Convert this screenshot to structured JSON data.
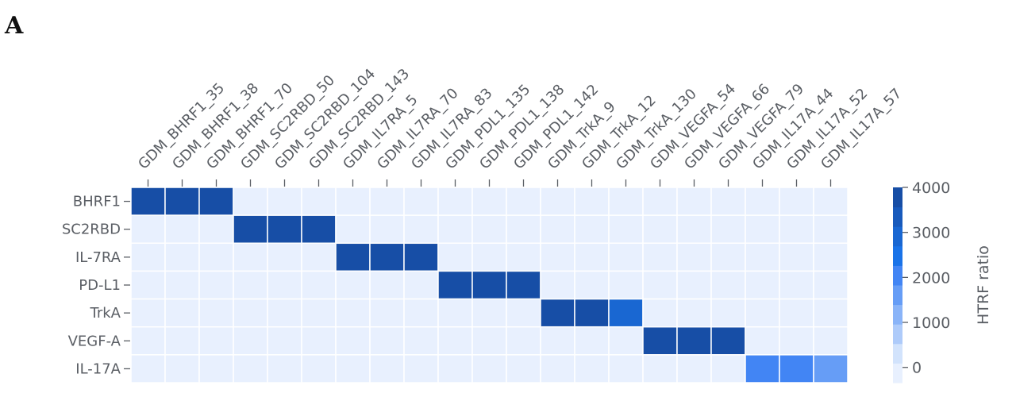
{
  "panel_label": "A",
  "chart_data": {
    "type": "heatmap",
    "x_categories": [
      "GDM_BHRF1_35",
      "GDM_BHRF1_38",
      "GDM_BHRF1_70",
      "GDM_SC2RBD_50",
      "GDM_SC2RBD_104",
      "GDM_SC2RBD_143",
      "GDM_IL7RA_5",
      "GDM_IL7RA_70",
      "GDM_IL7RA_83",
      "GDM_PDL1_135",
      "GDM_PDL1_138",
      "GDM_PDL1_142",
      "GDM_TrkA_9",
      "GDM_TrkA_12",
      "GDM_TrkA_130",
      "GDM_VEGFA_54",
      "GDM_VEGFA_66",
      "GDM_VEGFA_79",
      "GDM_IL17A_44",
      "GDM_IL17A_52",
      "GDM_IL17A_57"
    ],
    "y_categories": [
      "BHRF1",
      "SC2RBD",
      "IL-7RA",
      "PD-L1",
      "TrkA",
      "VEGF-A",
      "IL-17A"
    ],
    "values": [
      [
        3900,
        3900,
        3900,
        0,
        0,
        0,
        0,
        0,
        0,
        0,
        0,
        0,
        0,
        0,
        0,
        0,
        0,
        0,
        0,
        0,
        0
      ],
      [
        0,
        0,
        0,
        3900,
        3900,
        3900,
        0,
        0,
        0,
        0,
        0,
        0,
        0,
        0,
        0,
        0,
        0,
        0,
        0,
        0,
        0
      ],
      [
        0,
        0,
        0,
        0,
        0,
        0,
        3900,
        3900,
        3900,
        0,
        0,
        0,
        0,
        0,
        0,
        0,
        0,
        0,
        0,
        0,
        0
      ],
      [
        0,
        0,
        0,
        0,
        0,
        0,
        0,
        0,
        0,
        3900,
        3900,
        3900,
        0,
        0,
        0,
        0,
        0,
        0,
        0,
        0,
        0
      ],
      [
        0,
        0,
        0,
        0,
        0,
        0,
        0,
        0,
        0,
        0,
        0,
        0,
        3900,
        3900,
        2900,
        0,
        0,
        0,
        0,
        0,
        0
      ],
      [
        0,
        0,
        0,
        0,
        0,
        0,
        0,
        0,
        0,
        0,
        0,
        0,
        0,
        0,
        0,
        3900,
        3900,
        3900,
        0,
        0,
        0
      ],
      [
        0,
        0,
        0,
        0,
        0,
        0,
        0,
        0,
        0,
        0,
        0,
        0,
        0,
        0,
        0,
        0,
        0,
        0,
        2050,
        2050,
        1600
      ]
    ],
    "colorbar": {
      "label": "HTRF ratio",
      "ticks": [
        0,
        1000,
        2000,
        3000,
        4000
      ],
      "range": [
        -340,
        4000
      ],
      "colors_low_to_high": [
        "#e8f0fe",
        "#d2e3fc",
        "#aecbfa",
        "#8ab4f8",
        "#669df6",
        "#4285f4",
        "#1a73e8",
        "#1967d2",
        "#185abc",
        "#174ea6"
      ]
    },
    "x_axis_position": "top",
    "grid": false
  }
}
